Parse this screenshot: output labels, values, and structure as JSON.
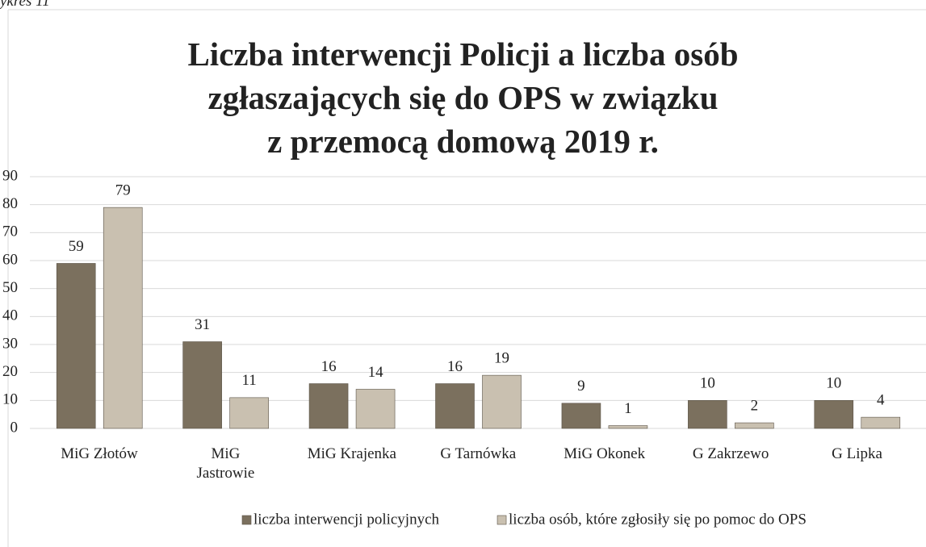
{
  "caption": "ykres 11",
  "chart_data": {
    "type": "bar",
    "title": "Liczba interwencji Policji a liczba osób\nzgłaszających się do OPS w związku\nz przemocą domową 2019 r.",
    "categories": [
      "MiG Złotów",
      "MiG\nJastrowie",
      "MiG Krajenka",
      "G Tarnówka",
      "MiG Okonek",
      "G Zakrzewo",
      "G Lipka"
    ],
    "series": [
      {
        "name": "liczba interwencji policyjnych",
        "color": "#7b705e",
        "values": [
          59,
          31,
          16,
          16,
          9,
          10,
          10
        ]
      },
      {
        "name": "liczba osób, które zgłosiły się po pomoc do OPS",
        "color": "#c9c0b0",
        "values": [
          79,
          11,
          14,
          19,
          1,
          2,
          4
        ]
      }
    ],
    "ylim": [
      0,
      90
    ],
    "yticks": [
      0,
      10,
      20,
      30,
      40,
      50,
      60,
      70,
      80,
      90
    ],
    "grid": true,
    "legend": "bottom"
  }
}
